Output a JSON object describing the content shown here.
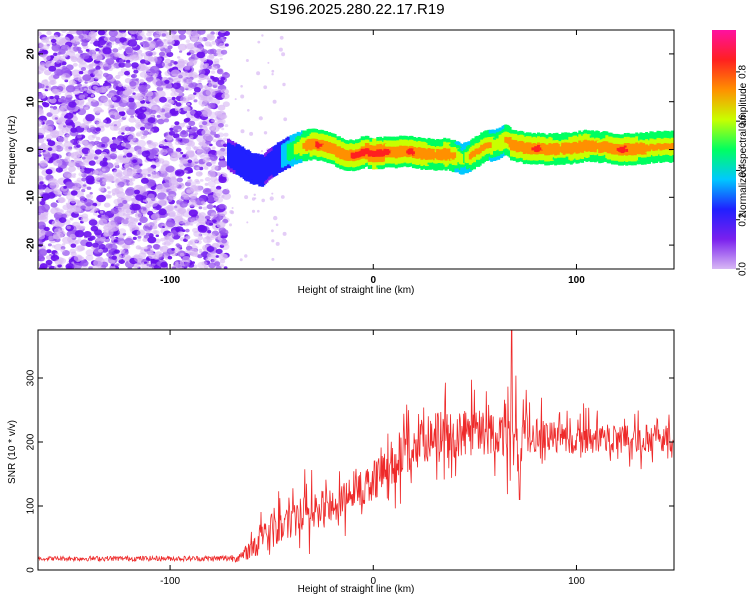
{
  "title": "S196.2025.280.22.17.R19",
  "chart_data": [
    {
      "type": "heatmap",
      "xlabel": "Height of straight line (km)",
      "ylabel": "Frequency (Hz)",
      "xlim": [
        -165,
        148
      ],
      "ylim": [
        -25,
        25
      ],
      "xticks": [
        -100,
        0,
        100
      ],
      "yticks": [
        -20,
        -10,
        0,
        10,
        20
      ],
      "colorbar": {
        "label": "Normalized spectral amplitude",
        "range": [
          0.0,
          0.97
        ],
        "ticks": [
          0.0,
          0.2,
          0.4,
          0.6,
          0.8
        ],
        "tick_labels": [
          "0.0",
          "0.2",
          "0.4",
          "0.6",
          "0.8"
        ],
        "colormap": [
          "#ffffff",
          "#d8b8f4",
          "#7a20ee",
          "#2020ff",
          "#00c8ff",
          "#00ff60",
          "#c8ff00",
          "#ff9000",
          "#ff2020",
          "#ff10a0"
        ]
      },
      "noise_region_x": [
        -165,
        -72
      ],
      "signal_ridge": {
        "x": [
          -72,
          -66,
          -60,
          -55,
          -52,
          -46,
          -40,
          -34,
          -28,
          -22,
          -16,
          -10,
          -5,
          0,
          6,
          12,
          18,
          24,
          30,
          36,
          40,
          44,
          48,
          54,
          60,
          64,
          68,
          74,
          80,
          86,
          92,
          98,
          104,
          110,
          116,
          122,
          128,
          134,
          140,
          148
        ],
        "freq": [
          -1.0,
          -2.5,
          -4.0,
          -4.5,
          -3.0,
          -1.5,
          0.0,
          1.0,
          1.0,
          0.5,
          -1.0,
          -1.2,
          -0.5,
          -0.8,
          -0.6,
          -0.5,
          -0.5,
          -1.0,
          -1.0,
          -1.0,
          -1.5,
          -2.0,
          -1.0,
          0.5,
          1.0,
          2.0,
          1.0,
          0.3,
          0.2,
          0.0,
          0.1,
          0.3,
          0.8,
          0.5,
          0.3,
          0.0,
          0.1,
          0.3,
          0.5,
          0.6
        ],
        "amplitude": [
          0.35,
          0.4,
          0.45,
          0.4,
          0.35,
          0.45,
          0.6,
          0.8,
          0.9,
          0.85,
          0.85,
          0.9,
          0.9,
          0.95,
          0.9,
          0.85,
          0.9,
          0.85,
          0.8,
          0.85,
          0.75,
          0.6,
          0.8,
          0.8,
          0.7,
          0.75,
          0.85,
          0.85,
          0.9,
          0.85,
          0.8,
          0.85,
          0.85,
          0.8,
          0.85,
          0.9,
          0.85,
          0.8,
          0.8,
          0.75
        ]
      }
    },
    {
      "type": "line",
      "xlabel": "Height of straight line (km)",
      "ylabel": "SNR (10 * v/v)",
      "xlim": [
        -165,
        148
      ],
      "ylim": [
        0,
        375
      ],
      "xticks": [
        -100,
        0,
        100
      ],
      "yticks": [
        0,
        100,
        200,
        300
      ],
      "series": [
        {
          "name": "SNR",
          "color": "#ee2a2a",
          "x": [
            -165,
            -150,
            -130,
            -110,
            -90,
            -75,
            -65,
            -60,
            -55,
            -50,
            -45,
            -40,
            -35,
            -30,
            -25,
            -20,
            -15,
            -10,
            -5,
            0,
            5,
            10,
            15,
            20,
            25,
            30,
            35,
            40,
            45,
            50,
            55,
            60,
            65,
            68,
            70,
            72,
            75,
            80,
            90,
            100,
            110,
            120,
            130,
            140,
            148
          ],
          "y": [
            18,
            18,
            18,
            18,
            18,
            18,
            20,
            35,
            50,
            60,
            70,
            80,
            85,
            90,
            95,
            100,
            110,
            120,
            130,
            140,
            150,
            165,
            180,
            190,
            198,
            205,
            210,
            212,
            215,
            215,
            215,
            215,
            212,
            200,
            190,
            200,
            210,
            212,
            208,
            205,
            205,
            205,
            205,
            205,
            205
          ],
          "spike_amplitude": [
            6,
            8,
            8,
            8,
            8,
            10,
            15,
            35,
            50,
            55,
            55,
            60,
            60,
            60,
            60,
            55,
            55,
            55,
            60,
            60,
            60,
            65,
            70,
            75,
            80,
            80,
            80,
            75,
            75,
            75,
            70,
            65,
            70,
            140,
            100,
            70,
            60,
            55,
            50,
            48,
            45,
            45,
            45,
            45,
            45
          ]
        }
      ]
    }
  ]
}
